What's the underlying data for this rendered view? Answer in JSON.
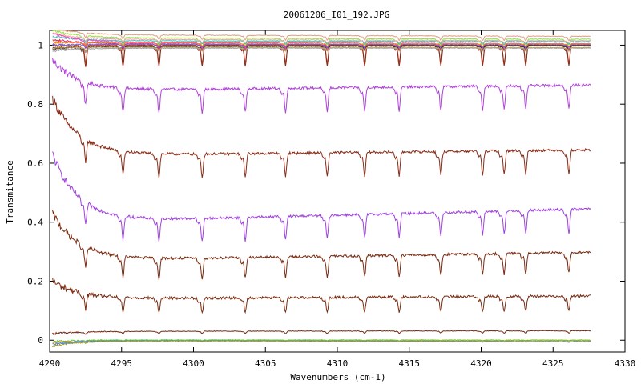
{
  "chart_data": {
    "type": "line",
    "title": "20061206_I01_192.JPG",
    "xlabel": "Wavenumbers (cm-1)",
    "ylabel": "Transmitance",
    "xlim": [
      4290,
      4330
    ],
    "ylim": [
      -0.04,
      1.05
    ],
    "grid": false,
    "legend": "none",
    "x_ticks": [
      4290,
      4295,
      4300,
      4305,
      4310,
      4315,
      4320,
      4325,
      4330
    ],
    "x_tick_labels": [
      "4290",
      "4295",
      "4300",
      "4305",
      "4310",
      "4315",
      "4320",
      "4325",
      "4330"
    ],
    "y_ticks": [
      0,
      0.2,
      0.4,
      0.6,
      0.8,
      1
    ],
    "y_tick_labels": [
      "0",
      "0.2",
      "0.4",
      "0.6",
      "0.8",
      "1"
    ],
    "x_range": [
      4290.2,
      4327.6
    ],
    "absorption_lines": [
      4292.5,
      4295.1,
      4297.6,
      4300.6,
      4303.6,
      4306.4,
      4309.3,
      4311.9,
      4314.3,
      4317.2,
      4320.1,
      4321.6,
      4323.1,
      4326.1
    ],
    "series": [
      {
        "color": "#b040d8",
        "start": 0.95,
        "level": 0.845,
        "end": 0.865,
        "depth": 0.08
      },
      {
        "color": "#8b2a14",
        "start": 0.82,
        "level": 0.625,
        "end": 0.645,
        "depth": 0.08
      },
      {
        "color": "#a040e0",
        "start": 0.63,
        "level": 0.4,
        "end": 0.445,
        "depth": 0.08
      },
      {
        "color": "#7a2a10",
        "start": 0.43,
        "level": 0.27,
        "end": 0.298,
        "depth": 0.07
      },
      {
        "color": "#7a2a10",
        "start": 0.2,
        "level": 0.14,
        "end": 0.15,
        "depth": 0.05
      },
      {
        "color": "#7a2a10",
        "start": 0.022,
        "level": 0.03,
        "end": 0.032,
        "depth": 0.008
      },
      {
        "color": "#ff8c00",
        "start": -0.01,
        "level": 0.0,
        "end": 0.0,
        "depth": 0.002
      },
      {
        "color": "#4080ff",
        "start": -0.015,
        "level": 0.0,
        "end": -0.005,
        "depth": 0.002
      },
      {
        "color": "#9a9a30",
        "start": -0.02,
        "level": -0.002,
        "end": -0.004,
        "depth": 0.002
      },
      {
        "color": "#60c040",
        "start": -0.005,
        "level": 0.001,
        "end": 0.0,
        "depth": 0.002
      },
      {
        "color": "#e0a080",
        "start": 1.06,
        "level": 1.035,
        "end": 1.03,
        "depth": 0.015
      },
      {
        "color": "#90e040",
        "start": 1.05,
        "level": 1.025,
        "end": 1.02,
        "depth": 0.03
      },
      {
        "color": "#f0a0a0",
        "start": 1.04,
        "level": 1.02,
        "end": 1.015,
        "depth": 0.01
      },
      {
        "color": "#40c0c0",
        "start": 1.03,
        "level": 1.015,
        "end": 1.012,
        "depth": 0.01
      },
      {
        "color": "#ff40c0",
        "start": 1.04,
        "level": 1.01,
        "end": 1.005,
        "depth": 0.02
      },
      {
        "color": "#e02060",
        "start": 1.02,
        "level": 1.005,
        "end": 1.0,
        "depth": 0.02
      },
      {
        "color": "#c04020",
        "start": 1.0,
        "level": 1.0,
        "end": 1.0,
        "depth": 0.06
      },
      {
        "color": "#8b2a14",
        "start": 0.99,
        "level": 0.998,
        "end": 1.0,
        "depth": 0.07
      },
      {
        "color": "#303030",
        "start": 0.985,
        "level": 0.995,
        "end": 0.998,
        "depth": 0.015
      },
      {
        "color": "#a0a0a0",
        "start": 0.98,
        "level": 0.99,
        "end": 0.99,
        "depth": 0.01
      },
      {
        "color": "#c0a060",
        "start": 0.99,
        "level": 0.993,
        "end": 0.992,
        "depth": 0.01
      },
      {
        "color": "#6060ff",
        "start": 1.0,
        "level": 1.003,
        "end": 1.002,
        "depth": 0.01
      },
      {
        "color": "#ff8000",
        "start": 1.01,
        "level": 1.008,
        "end": 1.005,
        "depth": 0.01
      }
    ]
  }
}
